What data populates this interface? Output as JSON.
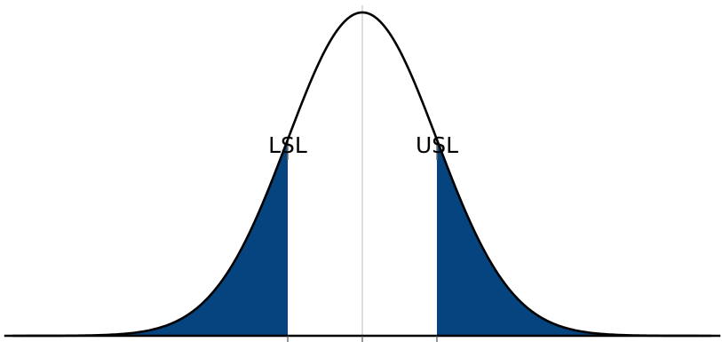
{
  "labels": {
    "lower_limit": "LSL",
    "upper_limit": "USL"
  },
  "distribution": {
    "type": "normal",
    "mean": 0,
    "sd": 1,
    "lower_limit": -1,
    "upper_limit": 1,
    "x_range": [
      -4.8,
      4.8
    ]
  },
  "colors": {
    "curve": "#000000",
    "tail_fill": "#064480",
    "center_line": "#c8c8c8",
    "limit_line": "#6f6f6f",
    "baseline": "#000000"
  }
}
